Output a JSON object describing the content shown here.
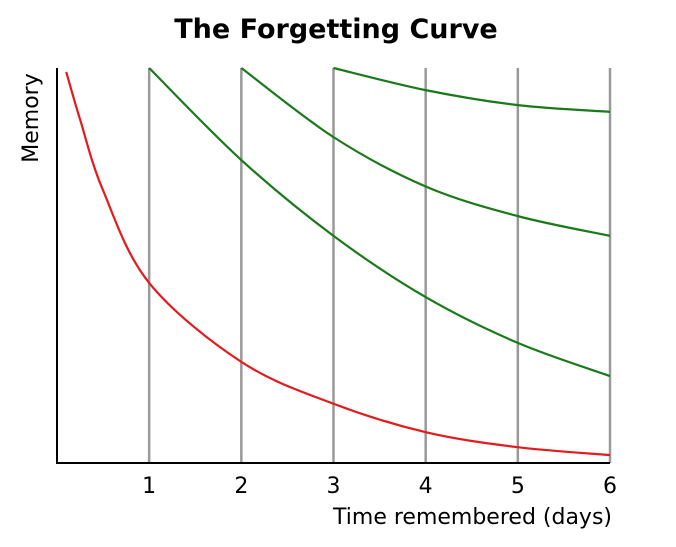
{
  "chart_data": {
    "type": "line",
    "title": "The Forgetting Curve",
    "x_label": "Time remembered (days)",
    "y_label": "Memory",
    "xlim": [
      0,
      6
    ],
    "ylim": [
      0,
      100
    ],
    "xticks": [
      1,
      2,
      3,
      4,
      5,
      6
    ],
    "grid": true,
    "series": [
      {
        "color": "#e41a1c",
        "x": [
          0.1,
          0.25,
          0.5,
          1,
          2,
          3,
          4,
          5,
          6
        ],
        "values": [
          99,
          87,
          69,
          45.6,
          25.6,
          15,
          7.8,
          4,
          2
        ]
      },
      {
        "color": "#1a7a1a",
        "x": [
          1,
          2,
          3,
          4,
          5,
          6
        ],
        "values": [
          100,
          76.7,
          57.5,
          42,
          30.4,
          22
        ]
      },
      {
        "color": "#1a7a1a",
        "x": [
          2,
          3,
          4,
          5,
          6
        ],
        "values": [
          100,
          82.5,
          70,
          62.5,
          57.5
        ]
      },
      {
        "color": "#1a7a1a",
        "x": [
          3,
          4,
          5,
          6
        ],
        "values": [
          100,
          94.4,
          90.6,
          88.9
        ]
      }
    ]
  }
}
